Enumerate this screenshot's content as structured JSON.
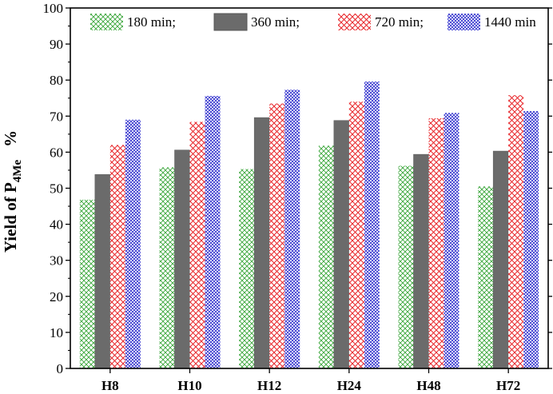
{
  "chart_data": {
    "type": "bar",
    "title": "",
    "xlabel": "",
    "ylabel": {
      "main": "Yield of P",
      "subscript": "4Me",
      "unit": "%"
    },
    "ylim": [
      0,
      100
    ],
    "yticks": [
      0,
      10,
      20,
      30,
      40,
      50,
      60,
      70,
      80,
      90,
      100
    ],
    "grid": false,
    "legend_position": "top",
    "categories": [
      "H8",
      "H10",
      "H12",
      "H24",
      "H48",
      "H72"
    ],
    "series": [
      {
        "name": "180 min;",
        "color": "#3aa63a",
        "pattern": "crosshatch",
        "values": [
          46.8,
          55.8,
          55.3,
          61.8,
          56.2,
          50.5
        ]
      },
      {
        "name": "360 min;",
        "color": "#6b6b6b",
        "pattern": "solid",
        "values": [
          53.8,
          60.6,
          69.6,
          68.8,
          59.4,
          60.3
        ]
      },
      {
        "name": "720 min;",
        "color": "#e8262a",
        "pattern": "crosshatch",
        "values": [
          62.0,
          68.4,
          73.5,
          74.0,
          69.4,
          75.8
        ]
      },
      {
        "name": "1440 min",
        "color": "#2b2bcc",
        "pattern": "crosshatch-dense",
        "values": [
          69.0,
          75.6,
          77.3,
          79.6,
          70.9,
          71.4
        ]
      }
    ]
  }
}
